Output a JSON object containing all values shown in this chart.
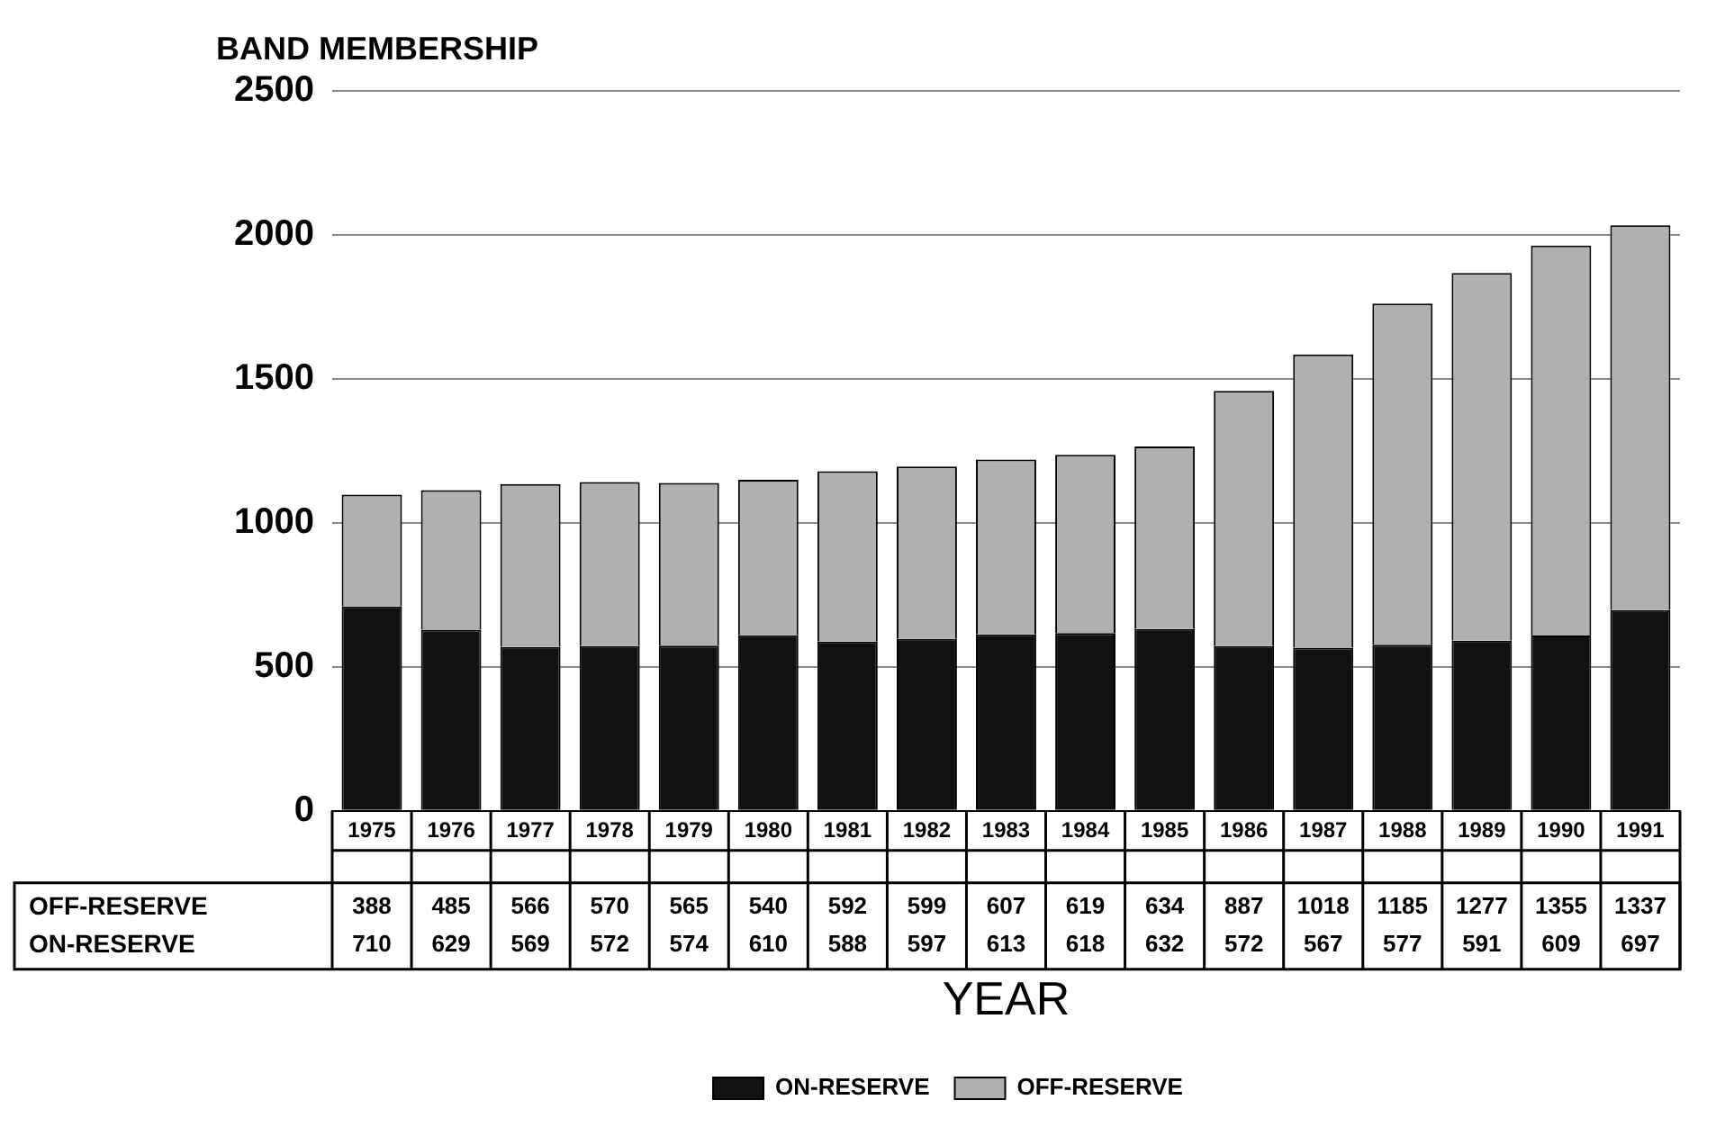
{
  "chart_data": {
    "type": "bar",
    "title": "BAND MEMBERSHIP",
    "xlabel": "YEAR",
    "stacked": true,
    "data_labels": true,
    "grid": "y",
    "legend": "bottom",
    "categories": [
      "1975",
      "1976",
      "1977",
      "1978",
      "1979",
      "1980",
      "1981",
      "1982",
      "1983",
      "1984",
      "1985",
      "1986",
      "1987",
      "1988",
      "1989",
      "1990",
      "1991"
    ],
    "ylim": [
      0,
      2500
    ],
    "yticks": [
      0,
      500,
      1000,
      1500,
      2000,
      2500
    ],
    "series": [
      {
        "name": "ON-RESERVE",
        "color": "#111111",
        "values": [
          710,
          629,
          569,
          572,
          574,
          610,
          588,
          597,
          613,
          618,
          632,
          572,
          567,
          577,
          591,
          609,
          697
        ]
      },
      {
        "name": "OFF-RESERVE",
        "color": "#b0b0b0",
        "values": [
          388,
          485,
          566,
          570,
          565,
          540,
          592,
          599,
          607,
          619,
          634,
          887,
          1018,
          1185,
          1277,
          1355,
          1337
        ]
      }
    ]
  }
}
